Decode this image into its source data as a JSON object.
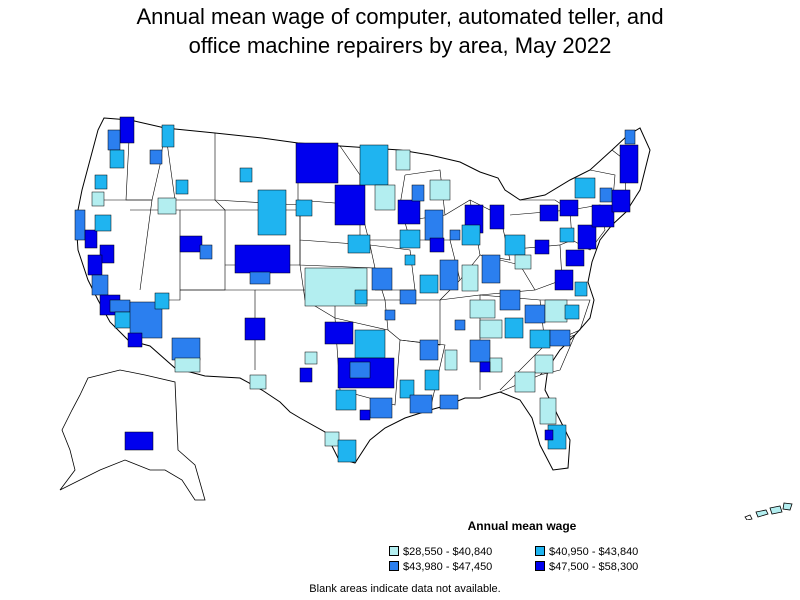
{
  "title_line1": "Annual mean wage of computer, automated teller, and",
  "title_line2": "office machine repairers by area, May 2022",
  "legend": {
    "title": "Annual mean wage",
    "items": [
      {
        "label": "$28,550 - $40,840",
        "color": "#b3eef0"
      },
      {
        "label": "$40,950 - $43,840",
        "color": "#1fb4f0"
      },
      {
        "label": "$43,980 - $47,450",
        "color": "#2b7fef"
      },
      {
        "label": "$47,500 - $58,300",
        "color": "#0000ee"
      }
    ]
  },
  "note": "Blank areas indicate data not available.",
  "colors": {
    "light": "#b3eef0",
    "medium": "#1fb4f0",
    "dark": "#2b7fef",
    "darkest": "#0000ee",
    "blank": "#ffffff",
    "border": "#000000"
  }
}
